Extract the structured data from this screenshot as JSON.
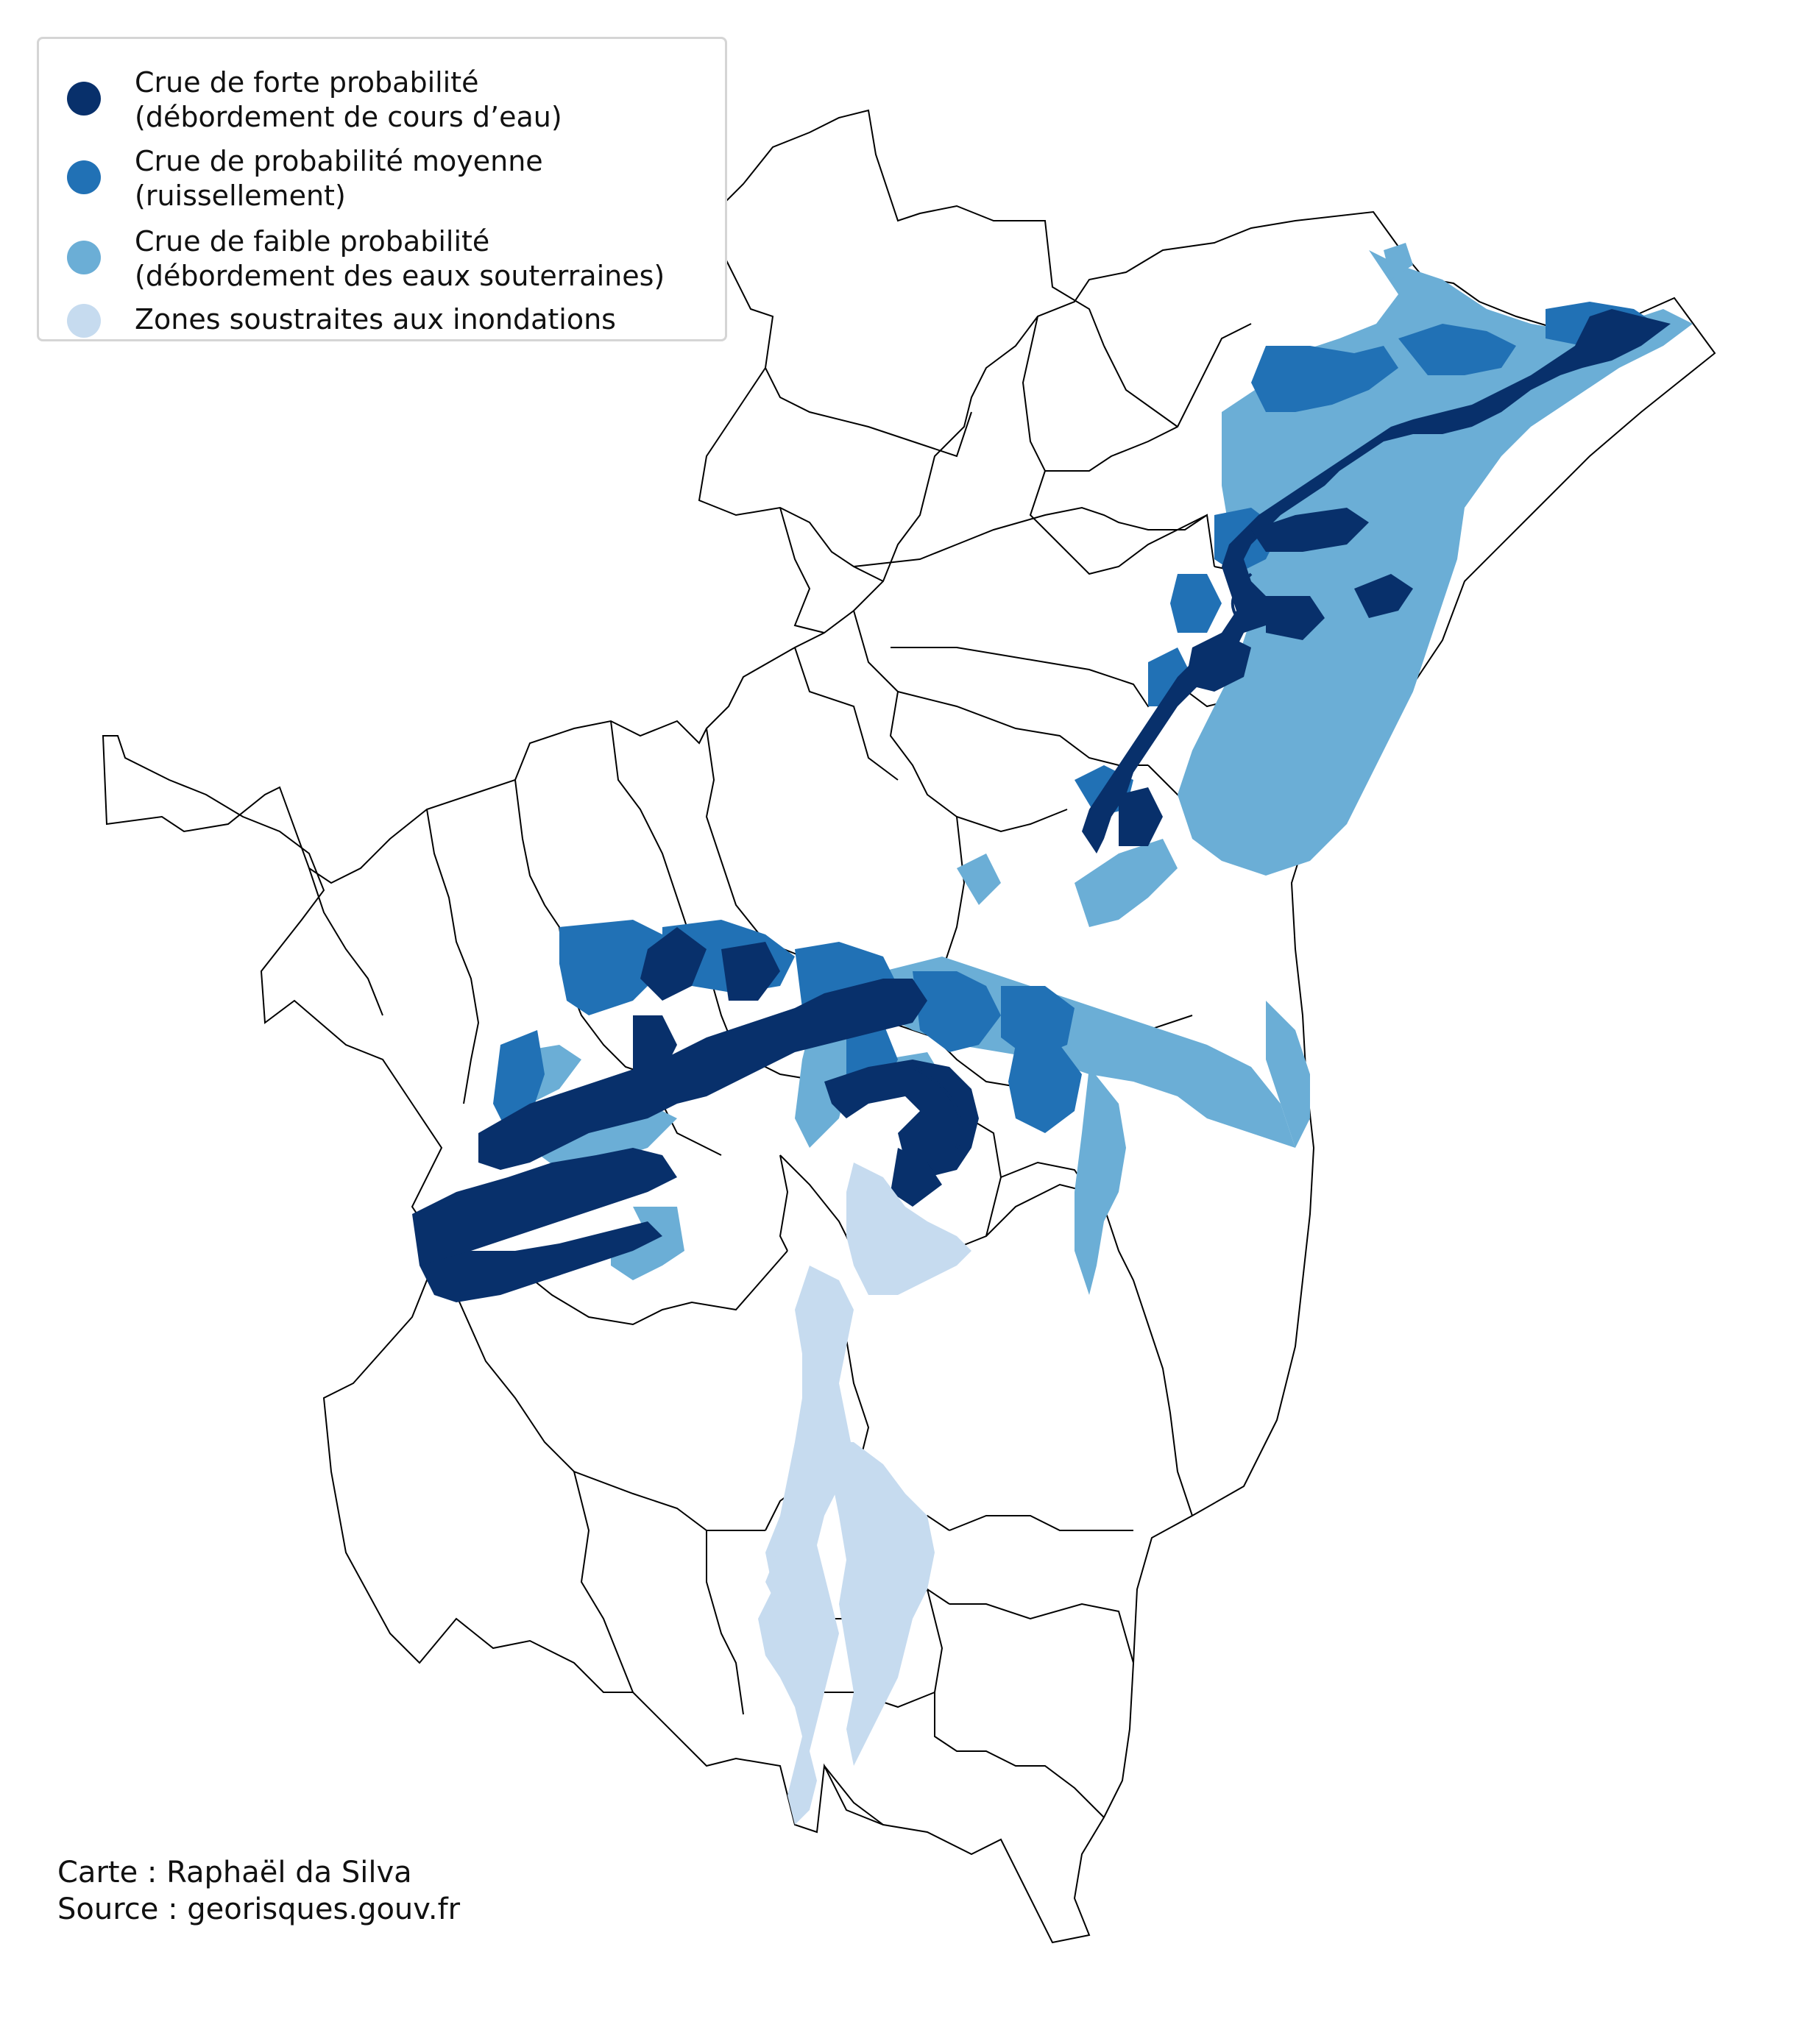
{
  "legend": {
    "items": [
      {
        "label": "Crue de forte probabilité\n(débordement de cours d’eau)",
        "color": "#08306b",
        "icon": "dot-icon"
      },
      {
        "label": "Crue de probabilité moyenne\n(ruissellement)",
        "color": "#2171b5",
        "icon": "dot-icon"
      },
      {
        "label": "Crue de faible probabilité\n(débordement des eaux souterraines)",
        "color": "#6baed6",
        "icon": "dot-icon"
      },
      {
        "label": "Zones soustraites aux inondations",
        "color": "#c6dbef",
        "icon": "dot-icon"
      }
    ]
  },
  "credits": {
    "author": "Carte : Raphaël da Silva",
    "source": "Source : georisques.gouv.fr"
  },
  "colors": {
    "high": "#08306b",
    "medium": "#2171b5",
    "low": "#6baed6",
    "protected": "#c6dbef",
    "boundary": "#000000",
    "background": "#ffffff"
  }
}
